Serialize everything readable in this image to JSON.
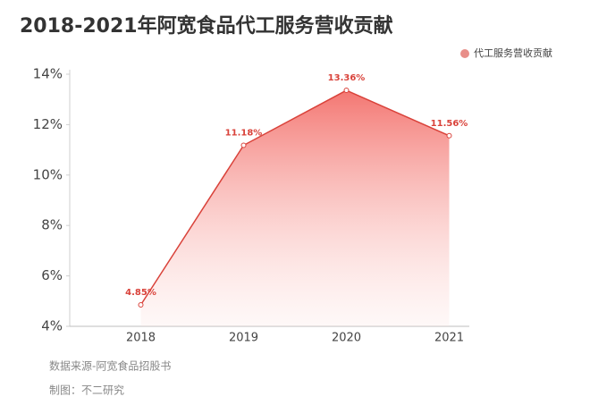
{
  "chart_data": {
    "type": "area",
    "title": "2018-2021年阿宽食品代工服务营收贡献",
    "categories": [
      "2018",
      "2019",
      "2020",
      "2021"
    ],
    "series": [
      {
        "name": "代工服务营收贡献",
        "color": "#d9423a",
        "values": [
          4.85,
          11.18,
          13.36,
          11.56
        ],
        "value_labels": [
          "4.85%",
          "11.18%",
          "13.36%",
          "11.56%"
        ]
      }
    ],
    "ylim": [
      4,
      14
    ],
    "yticks": [
      {
        "value": 4,
        "label": "4%"
      },
      {
        "value": 6,
        "label": "6%"
      },
      {
        "value": 8,
        "label": "8%"
      },
      {
        "value": 10,
        "label": "10%"
      },
      {
        "value": 12,
        "label": "12%"
      },
      {
        "value": 14,
        "label": "14%"
      }
    ],
    "grid": false,
    "legend": "top-right"
  },
  "footer": {
    "source": "数据来源-阿宽食品招股书",
    "credit": "制图：不二研究"
  }
}
